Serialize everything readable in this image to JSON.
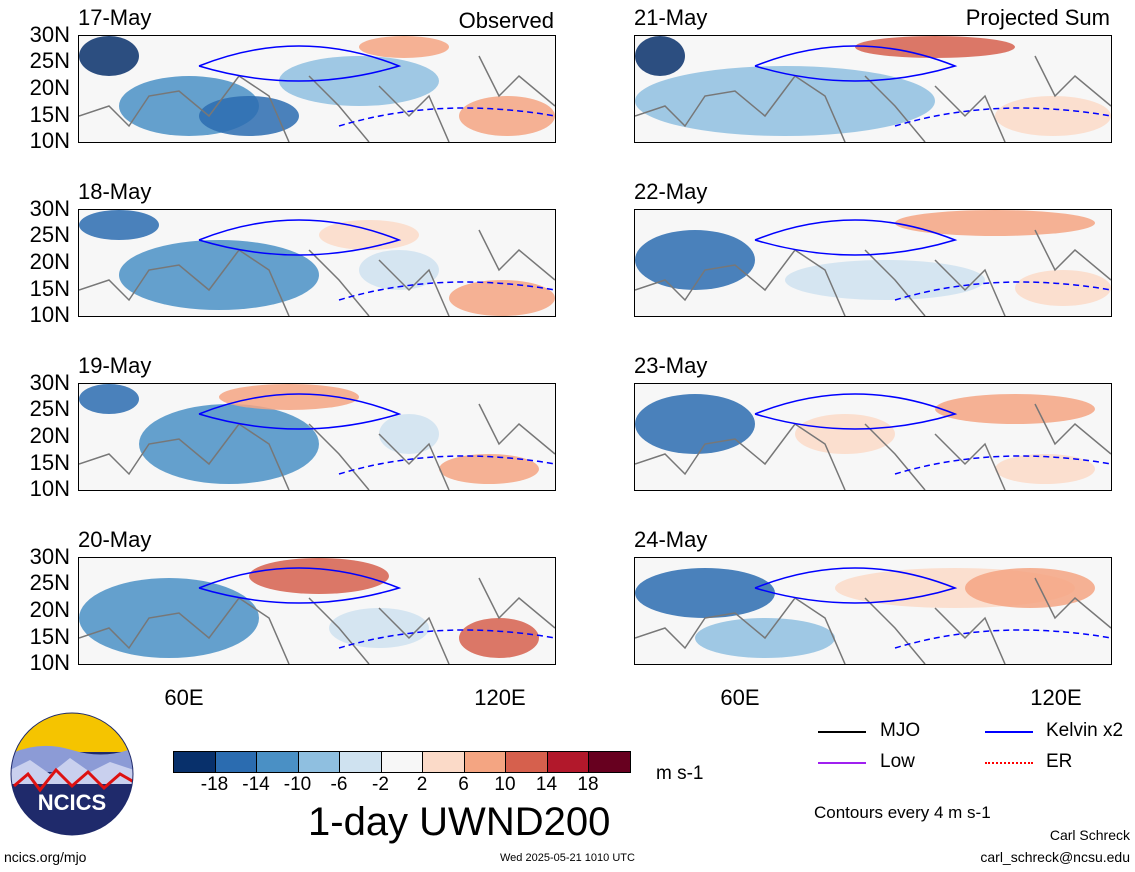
{
  "panels": [
    {
      "date": "17-May",
      "corner_label": "Observed"
    },
    {
      "date": "18-May",
      "corner_label": ""
    },
    {
      "date": "19-May",
      "corner_label": ""
    },
    {
      "date": "20-May",
      "corner_label": ""
    },
    {
      "date": "21-May",
      "corner_label": "Projected Sum"
    },
    {
      "date": "22-May",
      "corner_label": ""
    },
    {
      "date": "23-May",
      "corner_label": ""
    },
    {
      "date": "24-May",
      "corner_label": ""
    }
  ],
  "lat_labels": [
    "30N",
    "25N",
    "20N",
    "15N",
    "10N"
  ],
  "lon_labels": [
    "60E",
    "120E"
  ],
  "colorbar": {
    "colors": [
      "#08306b",
      "#2b6cb0",
      "#4a90c5",
      "#8fbfe0",
      "#cfe2f0",
      "#f7f7f7",
      "#fbdac8",
      "#f4a582",
      "#d6604d",
      "#b2182b",
      "#67001f"
    ],
    "tick_labels": [
      "-18",
      "-14",
      "-10",
      "-6",
      "-2",
      "2",
      "6",
      "10",
      "14",
      "18"
    ],
    "units": "m s-1",
    "title": "1-day UWND200"
  },
  "legend": {
    "items": [
      {
        "label": "MJO",
        "color": "#000000"
      },
      {
        "label": "Kelvin x2",
        "color": "#0000ff"
      },
      {
        "label": "Low",
        "color": "#a020f0"
      },
      {
        "label": "ER",
        "color": "#ff0000"
      }
    ],
    "contours_note": "Contours every 4 m s-1"
  },
  "logo": {
    "text": "NCICS"
  },
  "footer": {
    "left": "ncics.org/mjo",
    "center": "Wed 2025-05-21 1010 UTC",
    "right_line1": "Carl Schreck",
    "right_line2": "carl_schreck@ncsu.edu"
  },
  "chart_data": {
    "type": "heatmap",
    "title": "1-day UWND200",
    "variable": "200 hPa zonal wind anomaly",
    "units": "m s-1",
    "panels": [
      {
        "date": "17-May",
        "kind": "Observed"
      },
      {
        "date": "18-May",
        "kind": "Observed"
      },
      {
        "date": "19-May",
        "kind": "Observed"
      },
      {
        "date": "20-May",
        "kind": "Observed"
      },
      {
        "date": "21-May",
        "kind": "Projected Sum"
      },
      {
        "date": "22-May",
        "kind": "Projected Sum"
      },
      {
        "date": "23-May",
        "kind": "Projected Sum"
      },
      {
        "date": "24-May",
        "kind": "Projected Sum"
      }
    ],
    "ylim": [
      "10N",
      "30N"
    ],
    "yticks": [
      "30N",
      "25N",
      "20N",
      "15N",
      "10N"
    ],
    "xticks": [
      "60E",
      "120E"
    ],
    "color_levels": [
      -18,
      -14,
      -10,
      -6,
      -2,
      2,
      6,
      10,
      14,
      18
    ],
    "contour_interval": 4
  }
}
